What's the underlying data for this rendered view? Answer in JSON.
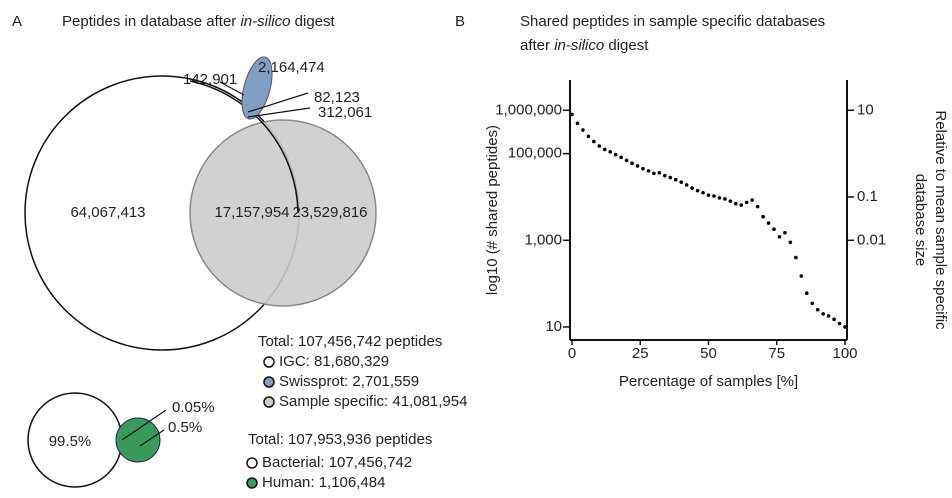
{
  "chart_data": [
    {
      "type": "venn",
      "panel": "A",
      "title_parts": [
        "Peptides in database after ",
        "in-silico",
        " digest"
      ],
      "regions": [
        "64,067,413",
        "17,157,954",
        "23,529,816",
        "142,901",
        "2,164,474",
        "82,123",
        "312,061"
      ],
      "total": "Total: 107,456,742 peptides",
      "sets": [
        {
          "name": "IGC: 81,680,329",
          "color": "#ffffff"
        },
        {
          "name": "Swissprot: 2,701,559",
          "color": "#7f9fc4"
        },
        {
          "name": "Sample specific: 41,081,954",
          "color": "#cccccc"
        }
      ]
    },
    {
      "type": "venn",
      "regions": [
        "99.5%",
        "0.05%",
        "0.5%"
      ],
      "total": "Total: 107,953,936 peptides",
      "sets": [
        {
          "name": "Bacterial: 107,456,742",
          "color": "#ffffff"
        },
        {
          "name": "Human: 1,106,484",
          "color": "#3a9a5a"
        }
      ]
    },
    {
      "type": "scatter",
      "panel": "B",
      "title_lines": [
        [
          "Shared peptides in sample specific databases"
        ],
        [
          "after ",
          "in-silico",
          " digest"
        ]
      ],
      "xlabel": "Percentage of samples [%]",
      "ylabel": "log10 (# shared peptides)",
      "y2label": [
        "Relative to mean sample specific",
        "database size"
      ],
      "x": [
        0,
        2,
        4,
        6,
        8,
        10,
        12,
        14,
        16,
        18,
        20,
        22,
        24,
        26,
        28,
        30,
        32,
        34,
        36,
        38,
        40,
        42,
        44,
        46,
        48,
        50,
        52,
        54,
        56,
        58,
        60,
        62,
        64,
        66,
        68,
        70,
        72,
        74,
        76,
        78,
        80,
        82,
        84,
        86,
        88,
        90,
        92,
        94,
        96,
        98,
        100
      ],
      "series": [
        {
          "color": "#000000",
          "values": [
            800000,
            500000,
            350000,
            250000,
            190000,
            150000,
            125000,
            110000,
            95000,
            82000,
            70000,
            60000,
            52000,
            45000,
            40000,
            35000,
            36000,
            31000,
            28000,
            25000,
            22000,
            19000,
            16000,
            14000,
            12500,
            11000,
            10500,
            9500,
            9000,
            8000,
            7000,
            6500,
            7500,
            8500,
            6000,
            3500,
            2500,
            1800,
            1200,
            1500,
            900,
            400,
            150,
            60,
            35,
            25,
            20,
            18,
            15,
            12,
            10
          ]
        }
      ],
      "xlim": [
        0,
        100
      ],
      "xticks": [
        0,
        25,
        50,
        75,
        100
      ],
      "log_y": true,
      "ylim": [
        5,
        5000000
      ],
      "yticks": [
        10,
        {
          "value": 1000,
          "label": "1,000"
        },
        {
          "value": 100000,
          "label": "100,000"
        },
        {
          "value": 1000000,
          "label": "1,000,000"
        }
      ],
      "y2lim": [
        5e-05,
        50
      ],
      "y2ticks": [
        0.01,
        0.1,
        10
      ]
    }
  ]
}
